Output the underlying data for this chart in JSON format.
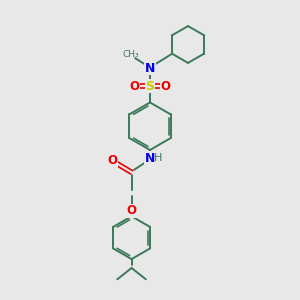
{
  "bg_color": "#e8e8e8",
  "bond_color": "#3a7a5a",
  "N_color": "#0000ee",
  "O_color": "#ee0000",
  "S_color": "#cccc00",
  "figsize": [
    3.0,
    3.0
  ],
  "dpi": 100,
  "xlim": [
    0,
    10
  ],
  "ylim": [
    0,
    10
  ]
}
